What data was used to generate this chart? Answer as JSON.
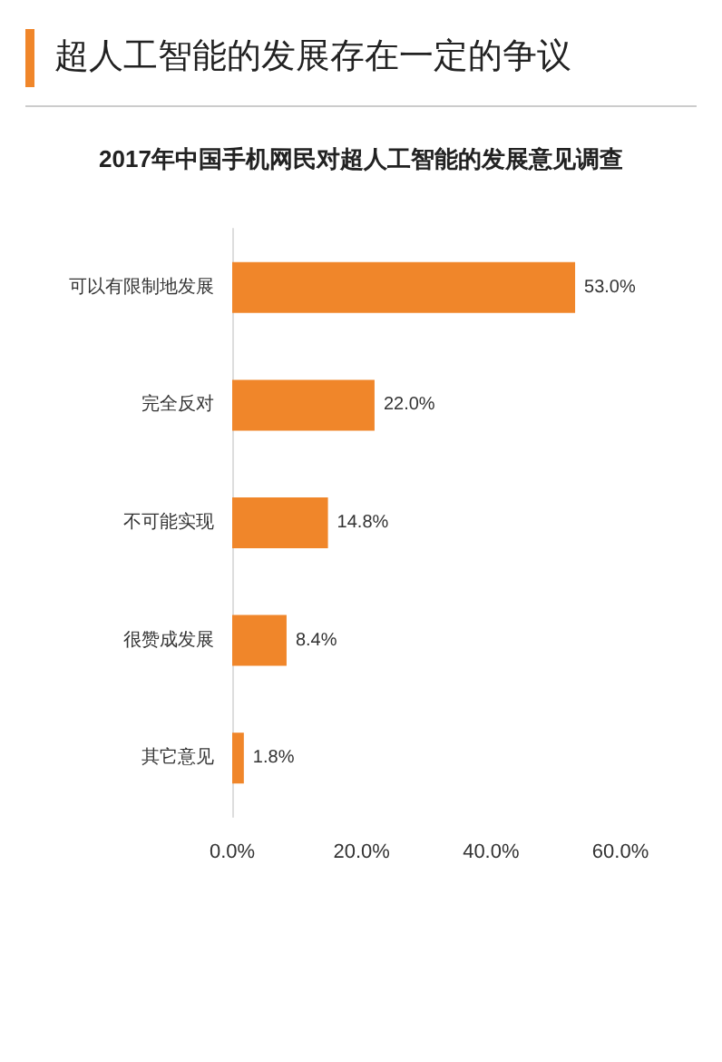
{
  "chart_data": {
    "type": "bar",
    "orientation": "horizontal",
    "title": "超人工智能的发展存在一定的争议",
    "subtitle": "2017年中国手机网民对超人工智能的发展意见调查",
    "categories": [
      "可以有限制地发展",
      "完全反对",
      "不可能实现",
      "很赞成发展",
      "其它意见"
    ],
    "values": [
      53.0,
      22.0,
      14.8,
      8.4,
      1.8
    ],
    "value_labels": [
      "53.0%",
      "22.0%",
      "14.8%",
      "8.4%",
      "1.8%"
    ],
    "color": "#f0862a",
    "xlim": [
      0,
      60
    ],
    "xticks": [
      {
        "value": 0,
        "label": "0.0%"
      },
      {
        "value": 20,
        "label": "20.0%"
      },
      {
        "value": 40,
        "label": "40.0%"
      },
      {
        "value": 60,
        "label": "60.0%"
      }
    ],
    "grid": false
  }
}
